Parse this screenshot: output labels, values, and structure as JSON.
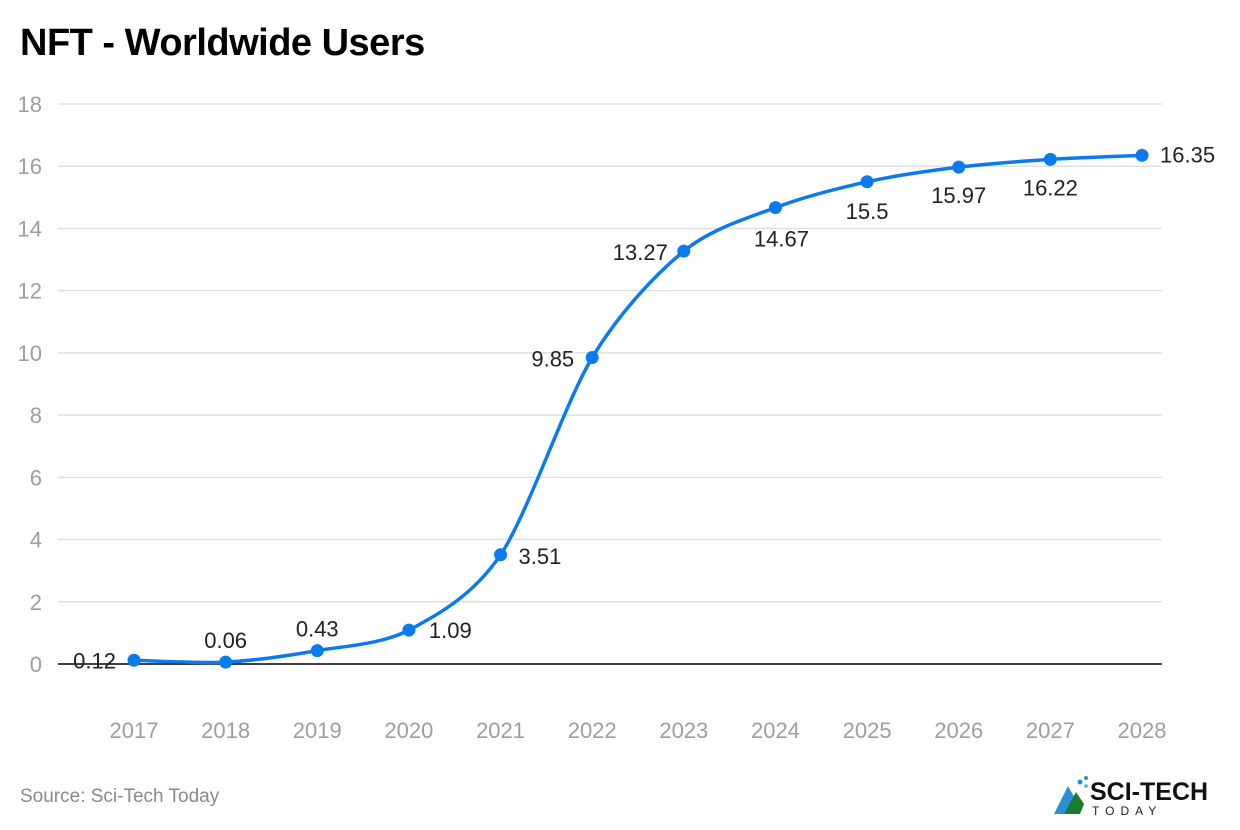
{
  "title": "NFT - Worldwide Users",
  "source": "Source: Sci-Tech Today",
  "logo": {
    "main": "SCI-TECH",
    "sub": "TODAY"
  },
  "colors": {
    "line": "#0a7bef",
    "grid": "#e0e0e0",
    "axis": "#000000"
  },
  "chart_data": {
    "type": "line",
    "title": "NFT - Worldwide Users",
    "xlabel": "",
    "ylabel": "",
    "categories": [
      "2017",
      "2018",
      "2019",
      "2020",
      "2021",
      "2022",
      "2023",
      "2024",
      "2025",
      "2026",
      "2027",
      "2028"
    ],
    "series": [
      {
        "name": "Users",
        "values": [
          0.12,
          0.06,
          0.43,
          1.09,
          3.51,
          9.85,
          13.27,
          14.67,
          15.5,
          15.97,
          16.22,
          16.35
        ]
      }
    ],
    "data_labels": [
      "0.12",
      "0.06",
      "0.43",
      "1.09",
      "3.51",
      "9.85",
      "13.27",
      "14.67",
      "15.5",
      "15.97",
      "16.22",
      "16.35"
    ],
    "ylim": [
      0,
      18
    ],
    "yticks": [
      0,
      2,
      4,
      6,
      8,
      10,
      12,
      14,
      16,
      18
    ],
    "grid": true,
    "legend": "none"
  }
}
